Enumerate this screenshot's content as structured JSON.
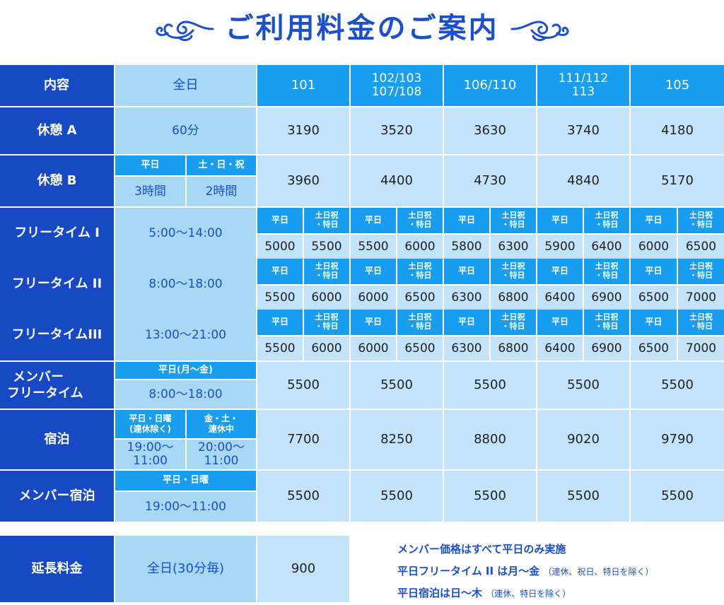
{
  "title": "ご利用料金のご案内",
  "colors": {
    "navy": "#1749c4",
    "blue": "#189ef0",
    "light": "#a8d8f4",
    "pale": "#c2e3fb",
    "accent": "#1a4fd0"
  },
  "icons": {
    "left": "flourish-left-icon",
    "right": "flourish-right-icon"
  },
  "header": {
    "content": "内容",
    "period": "全日",
    "rooms": [
      "101",
      "102/103",
      "107/108",
      "106/110",
      "111/112",
      "113",
      "105"
    ]
  },
  "tags": {
    "weekday": "平日",
    "weekend": "土日祝",
    "weekend2": "・特日"
  },
  "rest_a": {
    "label": "休憩 A",
    "time": "60分",
    "prices": [
      "3190",
      "3520",
      "3630",
      "3740",
      "4180"
    ]
  },
  "rest_b": {
    "label": "休憩 B",
    "sub1": "平日",
    "sub2": "土・日・祝",
    "time1": "3時間",
    "time2": "2時間",
    "prices": [
      "3960",
      "4400",
      "4730",
      "4840",
      "5170"
    ]
  },
  "free1": {
    "label": "フリータイム I",
    "time": "5:00〜14:00",
    "prices": [
      "5000",
      "5500",
      "5500",
      "6000",
      "5800",
      "6300",
      "5900",
      "6400",
      "6000",
      "6500"
    ]
  },
  "free2": {
    "label": "フリータイム II",
    "time": "8:00〜18:00",
    "prices": [
      "5500",
      "6000",
      "6000",
      "6500",
      "6300",
      "6800",
      "6400",
      "6900",
      "6500",
      "7000"
    ]
  },
  "free3": {
    "label": "フリータイムIII",
    "time": "13:00〜21:00",
    "prices": [
      "5500",
      "6000",
      "6000",
      "6500",
      "6300",
      "6800",
      "6400",
      "6900",
      "6500",
      "7000"
    ]
  },
  "member_free": {
    "label1": "メンバー",
    "label2": "フリータイム",
    "sub": "平日(月〜金)",
    "time": "8:00〜18:00",
    "prices": [
      "5500",
      "5500",
      "5500",
      "5500",
      "5500"
    ]
  },
  "stay": {
    "label": "宿泊",
    "sub1a": "平日・日曜",
    "sub1b": "(連休除く)",
    "sub2a": "金・土・",
    "sub2b": "連休中",
    "time1a": "19:00〜",
    "time1b": "11:00",
    "time2a": "20:00〜",
    "time2b": "11:00",
    "prices": [
      "7700",
      "8250",
      "8800",
      "9020",
      "9790"
    ]
  },
  "member_stay": {
    "label": "メンバー宿泊",
    "sub": "平日・日曜",
    "time": "19:00〜11:00",
    "prices": [
      "5500",
      "5500",
      "5500",
      "5500",
      "5500"
    ]
  },
  "extension": {
    "label": "延長料金",
    "period": "全日(30分毎)",
    "price": "900"
  },
  "notes": {
    "n1": "メンバー価格はすべて平日のみ実施",
    "n2": "平日フリータイム II は月〜金",
    "n2s": "（連休、祝日、特日を除く）",
    "n3": "平日宿泊は日〜木",
    "n3s": "（連休、特日を除く）"
  }
}
